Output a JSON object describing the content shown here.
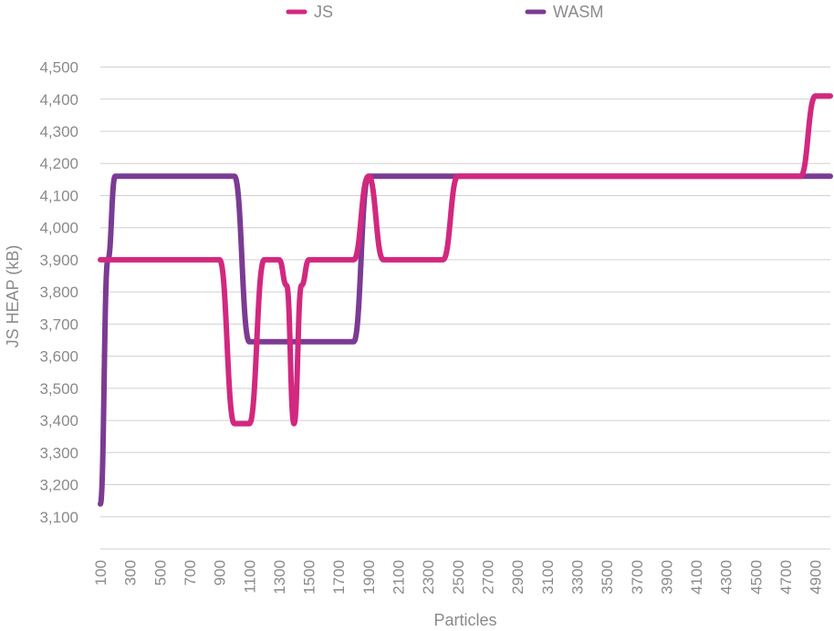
{
  "chart_data": {
    "type": "line",
    "xlabel": "Particles",
    "ylabel": "JS HEAP (kB)",
    "x_tick_labels": [
      "100",
      "300",
      "500",
      "700",
      "900",
      "1100",
      "1300",
      "1500",
      "1700",
      "1900",
      "2100",
      "2300",
      "2500",
      "2700",
      "2900",
      "3100",
      "3300",
      "3500",
      "3700",
      "3900",
      "4100",
      "4300",
      "4500",
      "4700",
      "4900"
    ],
    "y_tick_labels": [
      "3,100",
      "3,200",
      "3,300",
      "3,400",
      "3,500",
      "3,600",
      "3,700",
      "3,800",
      "3,900",
      "4,000",
      "4,100",
      "4,200",
      "4,300",
      "4,400",
      "4,500"
    ],
    "xlim": [
      100,
      5000
    ],
    "ylim": [
      3000,
      4500
    ],
    "grid": true,
    "legend_position": "top",
    "series": [
      {
        "name": "JS",
        "color": "#d2287f",
        "x": [
          100,
          900,
          1000,
          1100,
          1200,
          1300,
          1350,
          1400,
          1450,
          1500,
          1600,
          1700,
          1800,
          1900,
          2000,
          2100,
          2200,
          2300,
          2400,
          2500,
          4800,
          4900,
          5000
        ],
        "y": [
          3900,
          3900,
          3390,
          3390,
          3900,
          3900,
          3820,
          3390,
          3820,
          3900,
          3900,
          3900,
          3900,
          4160,
          3900,
          3900,
          3900,
          3900,
          3900,
          4160,
          4160,
          4410,
          4410
        ]
      },
      {
        "name": "WASM",
        "color": "#7b3b93",
        "x": [
          100,
          150,
          200,
          300,
          500,
          700,
          900,
          1000,
          1100,
          1200,
          1300,
          1400,
          1500,
          1600,
          1700,
          1800,
          1900,
          2000,
          2500,
          3000,
          4000,
          5000
        ],
        "y": [
          3140,
          3900,
          4160,
          4160,
          4160,
          4160,
          4160,
          4160,
          3645,
          3645,
          3645,
          3645,
          3645,
          3645,
          3645,
          3645,
          4160,
          4160,
          4160,
          4160,
          4160,
          4160
        ]
      }
    ]
  }
}
